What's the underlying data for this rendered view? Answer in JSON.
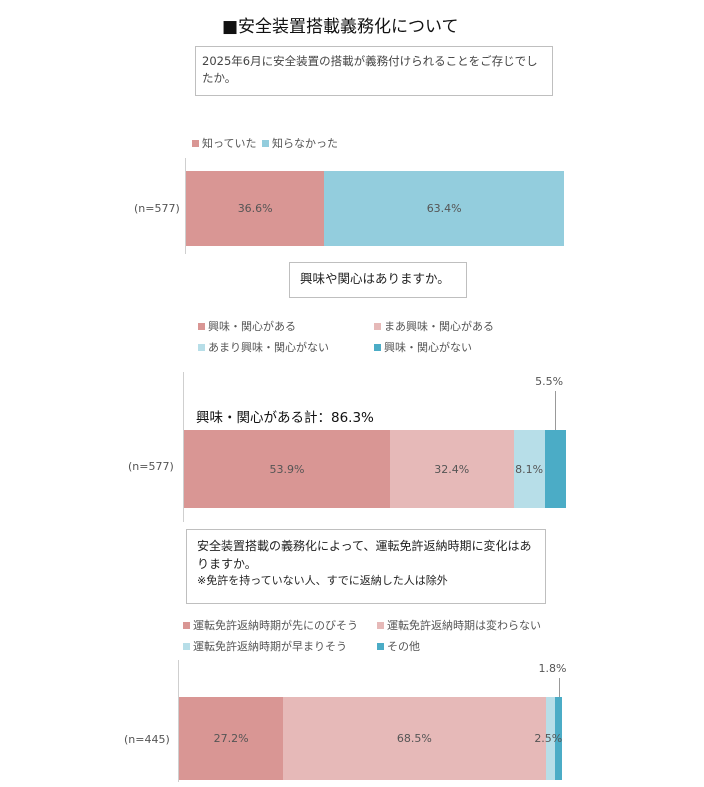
{
  "title": "■安全装置搭載義務化について",
  "colors": {
    "pink_dark": "#d99694",
    "pink_light": "#e6b9b8",
    "blue_light": "#b7dee8",
    "blue_mid": "#93cddd",
    "blue_dark": "#4bacc6"
  },
  "questions": {
    "q1": "2025年6月に安全装置の搭載が義務付けられることをご存じでしたか。",
    "q2": "興味や関心はありますか。",
    "q3_line1": "安全装置搭載の義務化によって、運転免許返納時期に変化はありますか。",
    "q3_note": "※免許を持っていない人、すでに返納した人は除外"
  },
  "summary_label": "興味・関心がある計：86.3%",
  "chart_data": [
    {
      "type": "bar",
      "orientation": "horizontal-stacked-100",
      "categories": [
        "(n=577)"
      ],
      "series": [
        {
          "name": "知っていた",
          "values": [
            36.6
          ],
          "color": "#d99694"
        },
        {
          "name": "知らなかった",
          "values": [
            63.4
          ],
          "color": "#93cddd"
        }
      ],
      "value_labels": [
        "36.6%",
        "63.4%"
      ],
      "legend_position": "top-left",
      "xlim": [
        0,
        100
      ]
    },
    {
      "type": "bar",
      "orientation": "horizontal-stacked-100",
      "categories": [
        "(n=577)"
      ],
      "series": [
        {
          "name": "興味・関心がある",
          "values": [
            53.9
          ],
          "color": "#d99694"
        },
        {
          "name": "まあ興味・関心がある",
          "values": [
            32.4
          ],
          "color": "#e6b9b8"
        },
        {
          "name": "あまり興味・関心がない",
          "values": [
            8.1
          ],
          "color": "#b7dee8"
        },
        {
          "name": "興味・関心がない",
          "values": [
            5.5
          ],
          "color": "#4bacc6"
        }
      ],
      "value_labels": [
        "53.9%",
        "32.4%",
        "8.1%",
        "5.5%"
      ],
      "legend_position": "top",
      "xlim": [
        0,
        100
      ]
    },
    {
      "type": "bar",
      "orientation": "horizontal-stacked-100",
      "categories": [
        "(n=445)"
      ],
      "series": [
        {
          "name": "運転免許返納時期が先にのびそう",
          "values": [
            27.2
          ],
          "color": "#d99694"
        },
        {
          "name": "運転免許返納時期は変わらない",
          "values": [
            68.5
          ],
          "color": "#e6b9b8"
        },
        {
          "name": "運転免許返納時期が早まりそう",
          "values": [
            2.5
          ],
          "color": "#b7dee8"
        },
        {
          "name": "その他",
          "values": [
            1.8
          ],
          "color": "#4bacc6"
        }
      ],
      "value_labels": [
        "27.2%",
        "68.5%",
        "2.5%",
        "1.8%"
      ],
      "legend_position": "top",
      "xlim": [
        0,
        100
      ]
    }
  ]
}
